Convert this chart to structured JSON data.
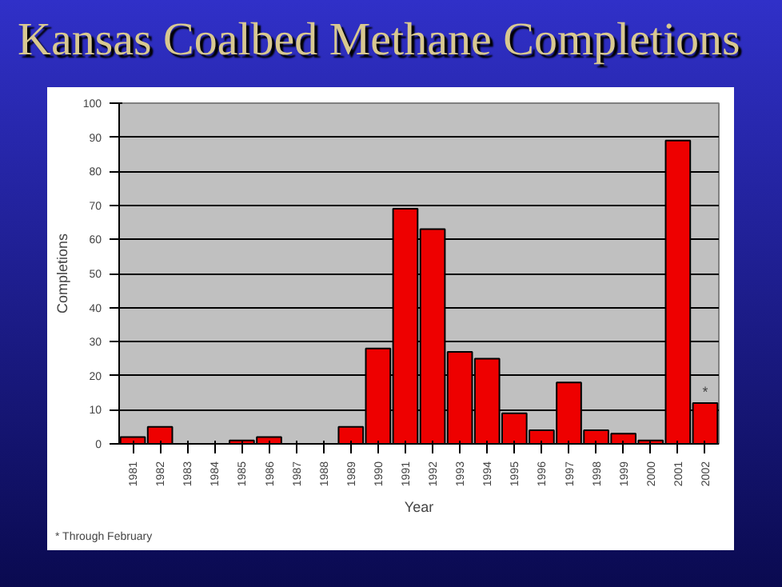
{
  "chart_data": {
    "type": "bar",
    "title": "Kansas Coalbed Methane Completions",
    "xlabel": "Year",
    "ylabel": "Completions",
    "categories": [
      "1981",
      "1982",
      "1983",
      "1984",
      "1985",
      "1986",
      "1987",
      "1988",
      "1989",
      "1990",
      "1991",
      "1992",
      "1993",
      "1994",
      "1995",
      "1996",
      "1997",
      "1998",
      "1999",
      "2000",
      "2001",
      "2002"
    ],
    "values": [
      2,
      5,
      0,
      0,
      1,
      2,
      0,
      0,
      5,
      28,
      69,
      63,
      27,
      25,
      9,
      4,
      18,
      4,
      3,
      1,
      89,
      12
    ],
    "color": "#ee0000",
    "ylim": [
      0,
      100
    ],
    "yticks": [
      0,
      10,
      20,
      30,
      40,
      50,
      60,
      70,
      80,
      90,
      100
    ],
    "grid": "y",
    "annotations": [
      {
        "text": "*",
        "x": "2002",
        "y": 12
      },
      "* Through February"
    ]
  }
}
